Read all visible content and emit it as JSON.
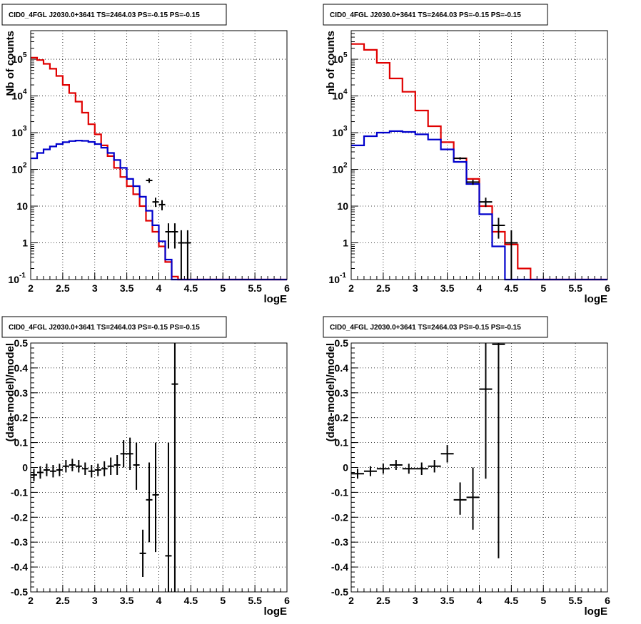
{
  "colors": {
    "model": "#e00000",
    "background": "#0000cc",
    "data": "#000000",
    "grid": "#000000"
  },
  "chart_data": [
    {
      "type": "line",
      "title": "CID0_4FGL J2030.0+3641 TS=2464.03 PS=-0.15 PS=-0.15",
      "xlabel": "logE",
      "ylabel": "Nb of counts",
      "xlim": [
        2,
        6
      ],
      "ylim": [
        0.1,
        600000
      ],
      "yscale": "log",
      "grid": true,
      "xticks": [
        "2",
        "2.5",
        "3",
        "3.5",
        "4",
        "4.5",
        "5",
        "5.5",
        "6"
      ],
      "yticks": [
        {
          "mant": "10",
          "exp": "-1",
          "v": 0.1
        },
        {
          "mant": "1",
          "exp": "",
          "v": 1
        },
        {
          "mant": "10",
          "exp": "",
          "v": 10
        },
        {
          "mant": "10",
          "exp": "2",
          "v": 100
        },
        {
          "mant": "10",
          "exp": "3",
          "v": 1000
        },
        {
          "mant": "10",
          "exp": "4",
          "v": 10000
        },
        {
          "mant": "10",
          "exp": "5",
          "v": 100000
        }
      ],
      "bin_edges": [
        2,
        2.1,
        2.2,
        2.3,
        2.4,
        2.5,
        2.6,
        2.7,
        2.8,
        2.9,
        3.0,
        3.1,
        3.2,
        3.3,
        3.4,
        3.5,
        3.6,
        3.7,
        3.8,
        3.9,
        4.0,
        4.1,
        4.2,
        4.3,
        4.4,
        4.5,
        4.6,
        4.7,
        4.8,
        4.9,
        5.0,
        5.1,
        5.2,
        5.3,
        5.4,
        5.5,
        5.6,
        5.7,
        5.8,
        5.9,
        6.0
      ],
      "series": [
        {
          "role": "model",
          "color": "#e00000",
          "values": [
            110000,
            95000,
            75000,
            55000,
            35000,
            20000,
            12000,
            7000,
            3500,
            1700,
            900,
            450,
            230,
            110,
            62,
            35,
            21,
            10,
            4,
            2,
            0.8,
            0.3,
            0.12,
            0.1,
            0.1,
            0.1,
            0.1,
            0.1,
            0.1,
            0.1,
            0.1,
            0.1,
            0.1,
            0.1,
            0.1,
            0.1,
            0.1,
            0.1,
            0.1,
            0.1
          ]
        },
        {
          "role": "background",
          "color": "#0000cc",
          "values": [
            200,
            280,
            350,
            420,
            490,
            550,
            590,
            610,
            600,
            560,
            490,
            390,
            280,
            180,
            110,
            55,
            35,
            18,
            7.5,
            3,
            1.1,
            0.35,
            0.1,
            0.1,
            0.1,
            0.1,
            0.1,
            0.1,
            0.1,
            0.1,
            0.1,
            0.1,
            0.1,
            0.1,
            0.1,
            0.1,
            0.1,
            0.1,
            0.1,
            0.1
          ]
        }
      ],
      "points": [
        {
          "x": 3.85,
          "y": 50,
          "xerr": 0.05,
          "ylo": 43,
          "yhi": 57
        },
        {
          "x": 3.95,
          "y": 13,
          "xerr": 0.05,
          "ylo": 9.5,
          "yhi": 17
        },
        {
          "x": 4.05,
          "y": 11,
          "xerr": 0.05,
          "ylo": 7.7,
          "yhi": 14.5
        },
        {
          "x": 4.15,
          "y": 2,
          "xerr": 0.05,
          "ylo": 0.7,
          "yhi": 3.4
        },
        {
          "x": 4.25,
          "y": 2,
          "xerr": 0.05,
          "ylo": 0.7,
          "yhi": 3.4
        },
        {
          "x": 4.35,
          "y": 1,
          "xerr": 0.05,
          "ylo": 0.1,
          "yhi": 2.2
        },
        {
          "x": 4.45,
          "y": 1,
          "xerr": 0.05,
          "ylo": 0.1,
          "yhi": 2.2
        }
      ]
    },
    {
      "type": "line",
      "title": "CID0_4FGL J2030.0+3641 TS=2464.03 PS=-0.15 PS=-0.15",
      "xlabel": "logE",
      "ylabel": "nb of counts",
      "xlim": [
        2,
        6
      ],
      "ylim": [
        0.1,
        600000
      ],
      "yscale": "log",
      "grid": true,
      "xticks": [
        "2",
        "2.5",
        "3",
        "3.5",
        "4",
        "4.5",
        "5",
        "5.5",
        "6"
      ],
      "yticks": [
        {
          "mant": "10",
          "exp": "-1",
          "v": 0.1
        },
        {
          "mant": "1",
          "exp": "",
          "v": 1
        },
        {
          "mant": "10",
          "exp": "",
          "v": 10
        },
        {
          "mant": "10",
          "exp": "2",
          "v": 100
        },
        {
          "mant": "10",
          "exp": "3",
          "v": 1000
        },
        {
          "mant": "10",
          "exp": "4",
          "v": 10000
        },
        {
          "mant": "10",
          "exp": "5",
          "v": 100000
        }
      ],
      "bin_edges": [
        2,
        2.2,
        2.4,
        2.6,
        2.8,
        3.0,
        3.2,
        3.4,
        3.6,
        3.8,
        4.0,
        4.2,
        4.4,
        4.6,
        4.8,
        5.0,
        5.2,
        5.4,
        5.6,
        5.8,
        6.0
      ],
      "series": [
        {
          "role": "model",
          "color": "#e00000",
          "values": [
            260000,
            180000,
            80000,
            30000,
            13000,
            4000,
            1500,
            550,
            200,
            55,
            10,
            2,
            0.9,
            0.2,
            0.1,
            0.1,
            0.1,
            0.1,
            0.1,
            0.1
          ]
        },
        {
          "role": "background",
          "color": "#0000cc",
          "values": [
            450,
            800,
            1000,
            1100,
            1050,
            900,
            650,
            350,
            160,
            40,
            6,
            0.8,
            0.1,
            0.1,
            0.1,
            0.1,
            0.1,
            0.1,
            0.1,
            0.1
          ]
        }
      ],
      "points": [
        {
          "x": 3.7,
          "y": 200,
          "xerr": 0.1,
          "ylo": 185,
          "yhi": 215
        },
        {
          "x": 3.9,
          "y": 45,
          "xerr": 0.1,
          "ylo": 38,
          "yhi": 52
        },
        {
          "x": 4.1,
          "y": 13,
          "xerr": 0.1,
          "ylo": 9.5,
          "yhi": 17
        },
        {
          "x": 4.3,
          "y": 3,
          "xerr": 0.1,
          "ylo": 1.3,
          "yhi": 4.8
        },
        {
          "x": 4.5,
          "y": 1,
          "xerr": 0.1,
          "ylo": 0.1,
          "yhi": 2.2
        }
      ]
    },
    {
      "type": "scatter",
      "title": "CID0_4FGL J2030.0+3641 TS=2464.03 PS=-0.15 PS=-0.15",
      "xlabel": "logE",
      "ylabel": "(data-model)/model",
      "xlim": [
        2,
        6
      ],
      "ylim": [
        -0.5,
        0.5
      ],
      "yscale": "linear",
      "grid": true,
      "xticks": [
        "2",
        "2.5",
        "3",
        "3.5",
        "4",
        "4.5",
        "5",
        "5.5",
        "6"
      ],
      "yticks": [
        {
          "mant": "-0.5",
          "exp": "",
          "v": -0.5
        },
        {
          "mant": "-0.4",
          "exp": "",
          "v": -0.4
        },
        {
          "mant": "-0.3",
          "exp": "",
          "v": -0.3
        },
        {
          "mant": "-0.2",
          "exp": "",
          "v": -0.2
        },
        {
          "mant": "-0.1",
          "exp": "",
          "v": -0.1
        },
        {
          "mant": "0",
          "exp": "",
          "v": 0
        },
        {
          "mant": "0.1",
          "exp": "",
          "v": 0.1
        },
        {
          "mant": "0.2",
          "exp": "",
          "v": 0.2
        },
        {
          "mant": "0.3",
          "exp": "",
          "v": 0.3
        },
        {
          "mant": "0.4",
          "exp": "",
          "v": 0.4
        },
        {
          "mant": "0.5",
          "exp": "",
          "v": 0.5
        }
      ],
      "points": [
        {
          "x": 2.05,
          "y": -0.03,
          "xerr": 0.05,
          "ylo": -0.055,
          "yhi": -0.005
        },
        {
          "x": 2.15,
          "y": -0.02,
          "xerr": 0.05,
          "ylo": -0.045,
          "yhi": 0.005
        },
        {
          "x": 2.25,
          "y": -0.01,
          "xerr": 0.05,
          "ylo": -0.035,
          "yhi": 0.015
        },
        {
          "x": 2.35,
          "y": -0.015,
          "xerr": 0.05,
          "ylo": -0.04,
          "yhi": 0.01
        },
        {
          "x": 2.45,
          "y": -0.01,
          "xerr": 0.05,
          "ylo": -0.035,
          "yhi": 0.015
        },
        {
          "x": 2.55,
          "y": 0.005,
          "xerr": 0.05,
          "ylo": -0.02,
          "yhi": 0.03
        },
        {
          "x": 2.65,
          "y": 0.01,
          "xerr": 0.05,
          "ylo": -0.015,
          "yhi": 0.035
        },
        {
          "x": 2.75,
          "y": 0.005,
          "xerr": 0.05,
          "ylo": -0.02,
          "yhi": 0.03
        },
        {
          "x": 2.85,
          "y": -0.005,
          "xerr": 0.05,
          "ylo": -0.03,
          "yhi": 0.02
        },
        {
          "x": 2.95,
          "y": -0.015,
          "xerr": 0.05,
          "ylo": -0.04,
          "yhi": 0.01
        },
        {
          "x": 3.05,
          "y": -0.01,
          "xerr": 0.05,
          "ylo": -0.035,
          "yhi": 0.015
        },
        {
          "x": 3.15,
          "y": -0.005,
          "xerr": 0.05,
          "ylo": -0.035,
          "yhi": 0.025
        },
        {
          "x": 3.25,
          "y": 0.005,
          "xerr": 0.05,
          "ylo": -0.03,
          "yhi": 0.04
        },
        {
          "x": 3.35,
          "y": 0.01,
          "xerr": 0.05,
          "ylo": -0.03,
          "yhi": 0.05
        },
        {
          "x": 3.45,
          "y": 0.055,
          "xerr": 0.05,
          "ylo": 0.0,
          "yhi": 0.11
        },
        {
          "x": 3.55,
          "y": 0.055,
          "xerr": 0.05,
          "ylo": -0.01,
          "yhi": 0.12
        },
        {
          "x": 3.65,
          "y": 0.01,
          "xerr": 0.05,
          "ylo": -0.09,
          "yhi": 0.1
        },
        {
          "x": 3.75,
          "y": -0.345,
          "xerr": 0.05,
          "ylo": -0.44,
          "yhi": -0.25
        },
        {
          "x": 3.85,
          "y": -0.13,
          "xerr": 0.05,
          "ylo": -0.3,
          "yhi": 0.02
        },
        {
          "x": 3.95,
          "y": -0.11,
          "xerr": 0.05,
          "ylo": -0.34,
          "yhi": 0.1
        },
        {
          "x": 4.15,
          "y": -0.355,
          "xerr": 0.05,
          "ylo": -0.5,
          "yhi": 0.1
        },
        {
          "x": 4.25,
          "y": 0.335,
          "xerr": 0.05,
          "ylo": -0.5,
          "yhi": 0.5
        }
      ]
    },
    {
      "type": "scatter",
      "title": "CID0_4FGL J2030.0+3641 TS=2464.03 PS=-0.15 PS=-0.15",
      "xlabel": "logE",
      "ylabel": "(data-model)/model",
      "xlim": [
        2,
        6
      ],
      "ylim": [
        -0.5,
        0.5
      ],
      "yscale": "linear",
      "grid": true,
      "xticks": [
        "2",
        "2.5",
        "3",
        "3.5",
        "4",
        "4.5",
        "5",
        "5.5",
        "6"
      ],
      "yticks": [
        {
          "mant": "-0.5",
          "exp": "",
          "v": -0.5
        },
        {
          "mant": "-0.4",
          "exp": "",
          "v": -0.4
        },
        {
          "mant": "-0.3",
          "exp": "",
          "v": -0.3
        },
        {
          "mant": "-0.2",
          "exp": "",
          "v": -0.2
        },
        {
          "mant": "-0.1",
          "exp": "",
          "v": -0.1
        },
        {
          "mant": "0",
          "exp": "",
          "v": 0
        },
        {
          "mant": "0.1",
          "exp": "",
          "v": 0.1
        },
        {
          "mant": "0.2",
          "exp": "",
          "v": 0.2
        },
        {
          "mant": "0.3",
          "exp": "",
          "v": 0.3
        },
        {
          "mant": "0.4",
          "exp": "",
          "v": 0.4
        },
        {
          "mant": "0.5",
          "exp": "",
          "v": 0.5
        }
      ],
      "points": [
        {
          "x": 2.1,
          "y": -0.025,
          "xerr": 0.1,
          "ylo": -0.045,
          "yhi": -0.005
        },
        {
          "x": 2.3,
          "y": -0.015,
          "xerr": 0.1,
          "ylo": -0.035,
          "yhi": 0.005
        },
        {
          "x": 2.5,
          "y": -0.005,
          "xerr": 0.1,
          "ylo": -0.025,
          "yhi": 0.015
        },
        {
          "x": 2.7,
          "y": 0.01,
          "xerr": 0.1,
          "ylo": -0.01,
          "yhi": 0.03
        },
        {
          "x": 2.9,
          "y": -0.005,
          "xerr": 0.1,
          "ylo": -0.025,
          "yhi": 0.015
        },
        {
          "x": 3.1,
          "y": -0.005,
          "xerr": 0.1,
          "ylo": -0.03,
          "yhi": 0.02
        },
        {
          "x": 3.3,
          "y": 0.005,
          "xerr": 0.1,
          "ylo": -0.02,
          "yhi": 0.03
        },
        {
          "x": 3.5,
          "y": 0.055,
          "xerr": 0.1,
          "ylo": 0.02,
          "yhi": 0.09
        },
        {
          "x": 3.7,
          "y": -0.13,
          "xerr": 0.1,
          "ylo": -0.19,
          "yhi": -0.06
        },
        {
          "x": 3.9,
          "y": -0.12,
          "xerr": 0.1,
          "ylo": -0.25,
          "yhi": 0.0
        },
        {
          "x": 4.1,
          "y": 0.315,
          "xerr": 0.1,
          "ylo": -0.045,
          "yhi": 0.5
        },
        {
          "x": 4.3,
          "y": 0.495,
          "xerr": 0.1,
          "ylo": -0.365,
          "yhi": 0.5
        }
      ]
    }
  ]
}
